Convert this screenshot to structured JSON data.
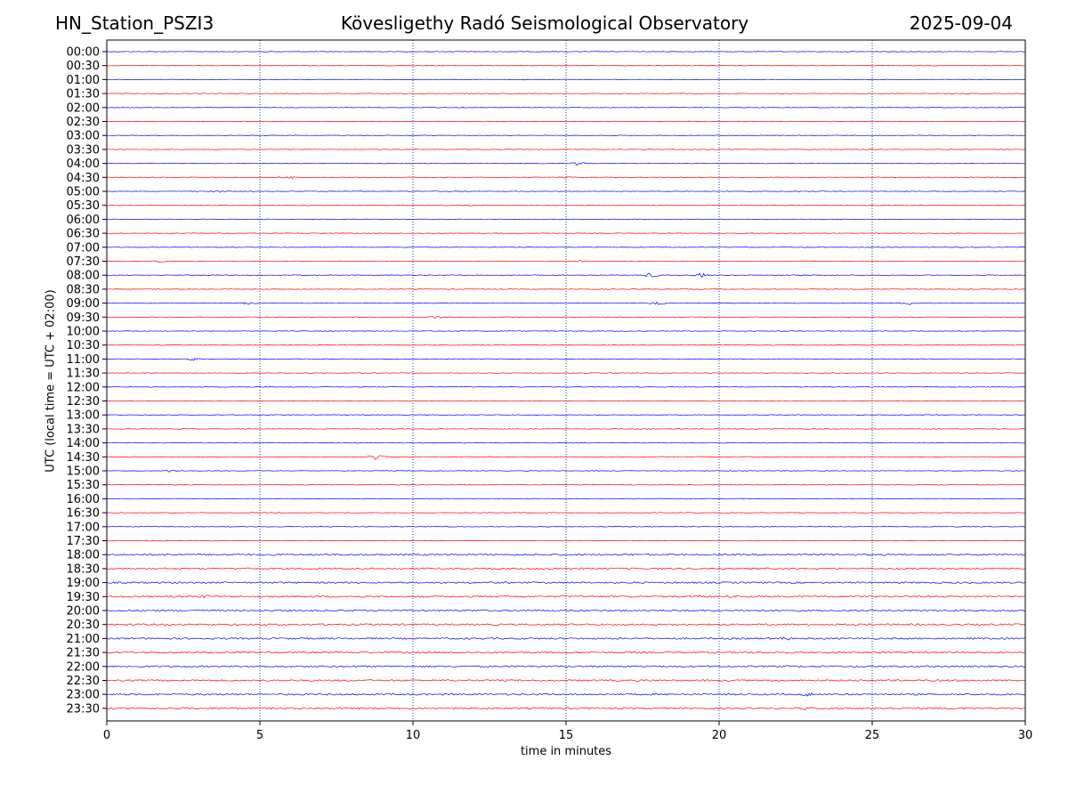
{
  "header": {
    "station": "HN_Station_PSZI3",
    "observatory": "Kövesligethy Radó Seismological Observatory",
    "date": "2025-09-04"
  },
  "chart_data": {
    "type": "line",
    "title": "Kövesligethy Radó Seismological Observatory",
    "xlabel": "time in minutes",
    "ylabel": "UTC (local time = UTC + 02:00)",
    "xlim": [
      0,
      30
    ],
    "xticks": [
      0,
      5,
      10,
      15,
      20,
      25,
      30
    ],
    "grid": "vertical dotted lines at x ticks",
    "colors": {
      "trace_a": "#0000ff",
      "trace_b": "#ff0000",
      "grid": "#000080"
    },
    "rows": [
      "00:00",
      "00:30",
      "01:00",
      "01:30",
      "02:00",
      "02:30",
      "03:00",
      "03:30",
      "04:00",
      "04:30",
      "05:00",
      "05:30",
      "06:00",
      "06:30",
      "07:00",
      "07:30",
      "08:00",
      "08:30",
      "09:00",
      "09:30",
      "10:00",
      "10:30",
      "11:00",
      "11:30",
      "12:00",
      "12:30",
      "13:00",
      "13:30",
      "14:00",
      "14:30",
      "15:00",
      "15:30",
      "16:00",
      "16:30",
      "17:00",
      "17:30",
      "18:00",
      "18:30",
      "19:00",
      "19:30",
      "20:00",
      "20:30",
      "21:00",
      "21:30",
      "22:00",
      "22:30",
      "23:00",
      "23:30"
    ],
    "events": [
      {
        "row": "04:00",
        "minute": 15.4,
        "amplitude": 2.5
      },
      {
        "row": "04:30",
        "minute": 5.9,
        "amplitude": 2
      },
      {
        "row": "04:30",
        "minute": 15.0,
        "amplitude": 1.5
      },
      {
        "row": "05:00",
        "minute": 3.6,
        "amplitude": 1.5
      },
      {
        "row": "05:30",
        "minute": 11.9,
        "amplitude": 1.2
      },
      {
        "row": "07:30",
        "minute": 1.7,
        "amplitude": 1.5
      },
      {
        "row": "07:30",
        "minute": 15.5,
        "amplitude": 1.8
      },
      {
        "row": "08:00",
        "minute": 17.8,
        "amplitude": 4
      },
      {
        "row": "08:00",
        "minute": 19.4,
        "amplitude": 3
      },
      {
        "row": "09:00",
        "minute": 4.7,
        "amplitude": 2
      },
      {
        "row": "09:00",
        "minute": 18.0,
        "amplitude": 2
      },
      {
        "row": "09:00",
        "minute": 26.2,
        "amplitude": 2
      },
      {
        "row": "09:30",
        "minute": 10.7,
        "amplitude": 2
      },
      {
        "row": "11:00",
        "minute": 2.8,
        "amplitude": 2
      },
      {
        "row": "14:30",
        "minute": 8.8,
        "amplitude": 3.5
      },
      {
        "row": "15:00",
        "minute": 2.1,
        "amplitude": 1.5
      },
      {
        "row": "19:30",
        "minute": 3.2,
        "amplitude": 1.5
      },
      {
        "row": "19:30",
        "minute": 19.4,
        "amplitude": 1.5
      },
      {
        "row": "21:00",
        "minute": 22.2,
        "amplitude": 1.5
      },
      {
        "row": "23:00",
        "minute": 22.9,
        "amplitude": 2
      },
      {
        "row": "23:30",
        "minute": 22.8,
        "amplitude": 1.5
      }
    ]
  }
}
